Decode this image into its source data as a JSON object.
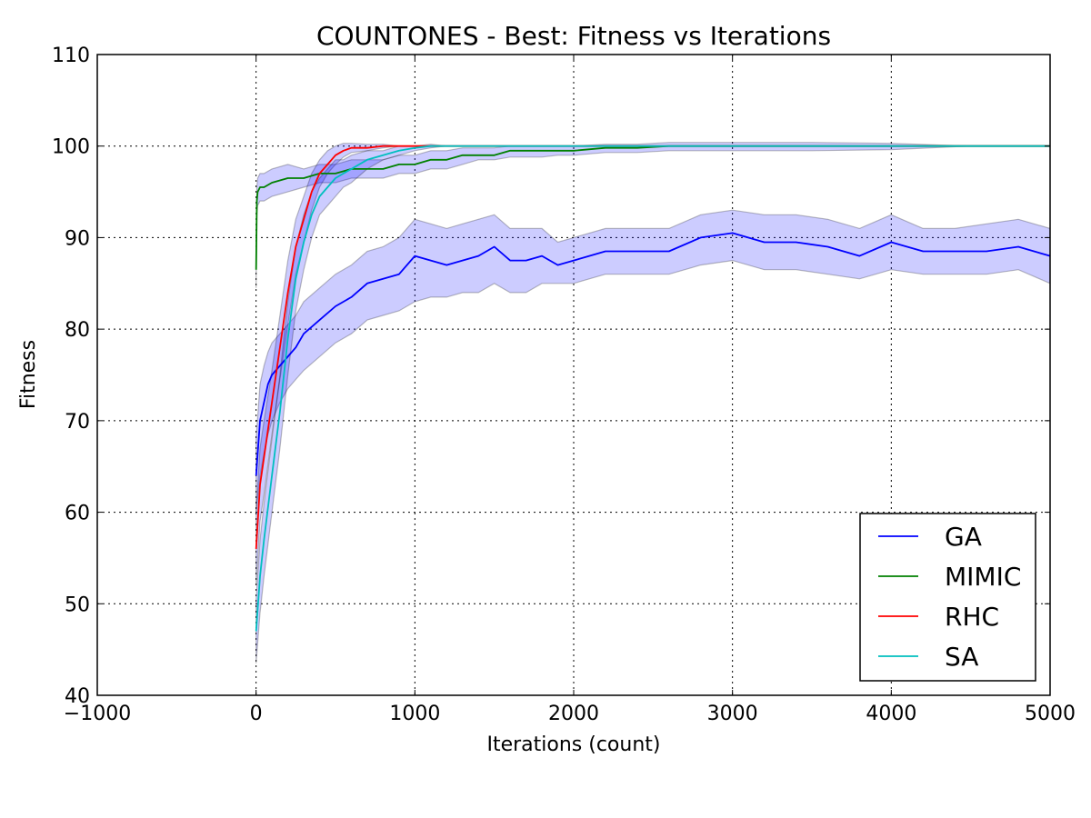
{
  "chart_data": {
    "type": "line",
    "title": "COUNTONES - Best: Fitness vs Iterations",
    "xlabel": "Iterations (count)",
    "ylabel": "Fitness",
    "xlim": [
      -1000,
      5000
    ],
    "ylim": [
      40,
      110
    ],
    "xticks": [
      -1000,
      0,
      1000,
      2000,
      3000,
      4000,
      5000
    ],
    "xtick_labels": [
      "−1000",
      "0",
      "1000",
      "2000",
      "3000",
      "4000",
      "5000"
    ],
    "yticks": [
      40,
      50,
      60,
      70,
      80,
      90,
      100,
      110
    ],
    "ytick_labels": [
      "40",
      "50",
      "60",
      "70",
      "80",
      "90",
      "100",
      "110"
    ],
    "grid": true,
    "legend_position": "lower-right",
    "shaded_band": "mean ± std",
    "series": [
      {
        "name": "GA",
        "color": "#0000ff",
        "x": [
          0,
          25,
          50,
          75,
          100,
          150,
          200,
          250,
          300,
          400,
          500,
          600,
          700,
          800,
          900,
          1000,
          1100,
          1200,
          1300,
          1400,
          1500,
          1600,
          1700,
          1800,
          1900,
          2000,
          2200,
          2400,
          2600,
          2800,
          3000,
          3200,
          3400,
          3600,
          3800,
          4000,
          4200,
          4400,
          4600,
          4800,
          5000
        ],
        "y": [
          64,
          70,
          72,
          74,
          75,
          76,
          77,
          78,
          79.5,
          81,
          82.5,
          83.5,
          85,
          85.5,
          86,
          88,
          87.5,
          87,
          87.5,
          88,
          89,
          87.5,
          87.5,
          88,
          87,
          87.5,
          88.5,
          88.5,
          88.5,
          90,
          90.5,
          89.5,
          89.5,
          89,
          88,
          89.5,
          88.5,
          88.5,
          88.5,
          89,
          88
        ],
        "lower": [
          60,
          64,
          66.5,
          68.5,
          70,
          72,
          73.5,
          74.5,
          75.5,
          77,
          78.5,
          79.5,
          81,
          81.5,
          82,
          83,
          83.5,
          83.5,
          84,
          84,
          85,
          84,
          84,
          85,
          85,
          85,
          86,
          86,
          86,
          87,
          87.5,
          86.5,
          86.5,
          86,
          85.5,
          86.5,
          86,
          86,
          86,
          86.5,
          85
        ],
        "upper": [
          68,
          74,
          76,
          77.5,
          78.5,
          79.5,
          80.5,
          81.5,
          83,
          84.5,
          86,
          87,
          88.5,
          89,
          90,
          92,
          91.5,
          91,
          91.5,
          92,
          92.5,
          91,
          91,
          91,
          89.5,
          90,
          91,
          91,
          91,
          92.5,
          93,
          92.5,
          92.5,
          92,
          91,
          92.5,
          91,
          91,
          91.5,
          92,
          91
        ]
      },
      {
        "name": "MIMIC",
        "color": "#008000",
        "x": [
          0,
          5,
          10,
          25,
          50,
          100,
          200,
          300,
          400,
          500,
          600,
          700,
          800,
          900,
          1000,
          1100,
          1200,
          1300,
          1400,
          1500,
          1600,
          1700,
          1800,
          1900,
          2000,
          2200,
          2400,
          2600,
          2800,
          3000,
          3500,
          4000,
          4500,
          5000
        ],
        "y": [
          86.5,
          94,
          95,
          95.5,
          95.5,
          96,
          96.5,
          96.5,
          97,
          97,
          97.5,
          97.5,
          97.5,
          98,
          98,
          98.5,
          98.5,
          99,
          99,
          99,
          99.5,
          99.5,
          99.5,
          99.5,
          99.5,
          99.8,
          99.8,
          100,
          100,
          100,
          100,
          100,
          100,
          100
        ],
        "lower": [
          84.5,
          92.5,
          93.5,
          94,
          94,
          94.5,
          95,
          95.5,
          96,
          96,
          96.5,
          96.5,
          96.5,
          97,
          97,
          97.5,
          97.5,
          98,
          98.5,
          98.5,
          98.8,
          98.8,
          98.8,
          99,
          99,
          99.3,
          99.3,
          99.5,
          99.5,
          99.5,
          99.5,
          99.6,
          100,
          100
        ],
        "upper": [
          88.5,
          95.5,
          96.5,
          97,
          97,
          97.5,
          98,
          97.5,
          98,
          98,
          98.5,
          98.5,
          98.5,
          99,
          99,
          99.5,
          99.5,
          99.8,
          99.8,
          99.8,
          100,
          100,
          100,
          100,
          100,
          100.2,
          100.2,
          100.4,
          100.4,
          100.4,
          100.4,
          100.3,
          100,
          100
        ]
      },
      {
        "name": "RHC",
        "color": "#ff0000",
        "x": [
          0,
          25,
          50,
          100,
          150,
          200,
          250,
          300,
          350,
          400,
          450,
          500,
          550,
          600,
          700,
          800,
          900,
          1000,
          1100,
          1200,
          2000,
          3000,
          4000,
          5000
        ],
        "y": [
          56,
          63,
          66,
          72,
          78,
          84,
          89,
          92,
          95,
          97,
          98,
          99,
          99.5,
          99.8,
          99.8,
          100,
          100,
          100,
          100,
          100,
          100,
          100,
          100,
          100
        ],
        "lower": [
          52,
          59,
          62,
          68.5,
          74.5,
          80.5,
          86,
          89.5,
          93,
          95.5,
          97,
          98,
          98.8,
          99.3,
          99.5,
          99.8,
          100,
          100,
          100,
          100,
          100,
          100,
          100,
          100
        ],
        "upper": [
          60,
          67,
          70,
          75.5,
          81.5,
          87.5,
          92,
          94.5,
          97,
          98.5,
          99.5,
          100,
          100.3,
          100.3,
          100.2,
          100.2,
          100,
          100,
          100,
          100,
          100,
          100,
          100,
          100
        ]
      },
      {
        "name": "SA",
        "color": "#00bfbf",
        "x": [
          0,
          25,
          50,
          100,
          150,
          200,
          250,
          300,
          350,
          400,
          450,
          500,
          550,
          600,
          700,
          800,
          900,
          1000,
          1100,
          1200,
          2000,
          3000,
          4000,
          5000
        ],
        "y": [
          47,
          53,
          57,
          64,
          71,
          79,
          85.5,
          89.5,
          92.5,
          94.5,
          95.5,
          96.5,
          97,
          97.5,
          98.5,
          99,
          99.5,
          99.8,
          100,
          100,
          100,
          100,
          100,
          100
        ],
        "lower": [
          43.5,
          49,
          53,
          60,
          67,
          75,
          82,
          86.5,
          90,
          92.5,
          93.5,
          94.5,
          95.5,
          96,
          97.5,
          98.5,
          99,
          99.5,
          99.8,
          100,
          100,
          100,
          100,
          100
        ],
        "upper": [
          50.5,
          57,
          61,
          68,
          75,
          83,
          89,
          92.5,
          95,
          96.5,
          97.5,
          98.5,
          98.5,
          99,
          99.5,
          99.5,
          100,
          100,
          100.2,
          100,
          100,
          100,
          100,
          100
        ]
      }
    ]
  }
}
